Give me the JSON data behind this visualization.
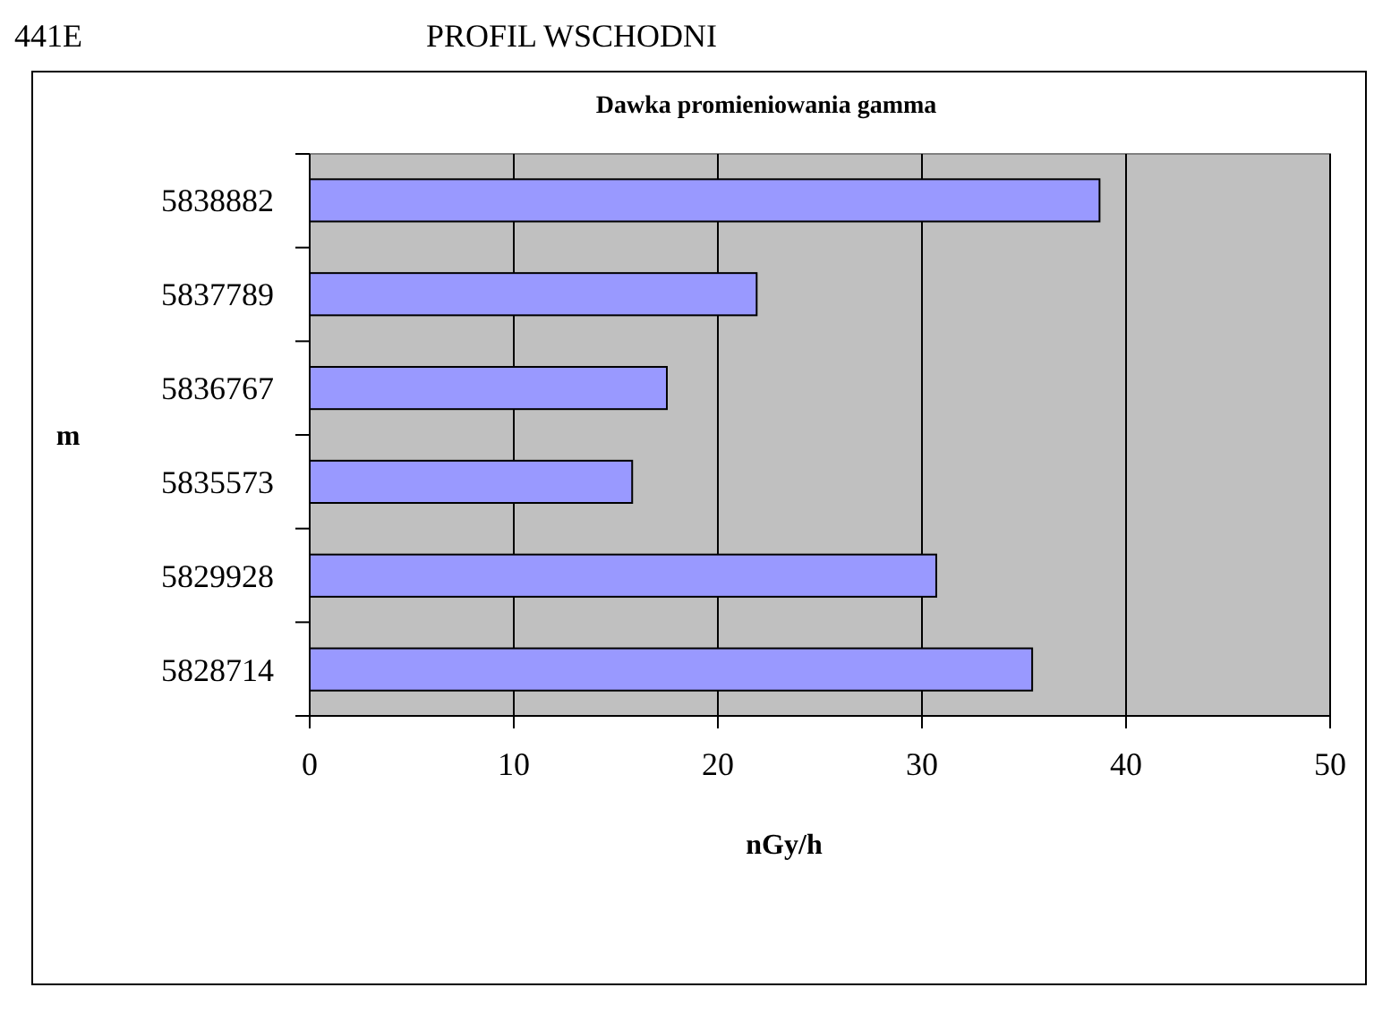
{
  "chart_data": {
    "type": "bar",
    "orientation": "horizontal",
    "title": "Dawka promieniowania gamma",
    "annotations": [
      "441E",
      "PROFIL WSCHODNI"
    ],
    "xlabel": "nGy/h",
    "ylabel": "m",
    "categories": [
      "5838882",
      "5837789",
      "5836767",
      "5835573",
      "5829928",
      "5828714"
    ],
    "values": [
      38.7,
      21.9,
      17.5,
      15.8,
      30.7,
      35.4
    ],
    "color": "#9999ff",
    "xlim": [
      0,
      50
    ],
    "xticks": [
      0,
      10,
      20,
      30,
      40,
      50
    ],
    "grid": "x"
  }
}
